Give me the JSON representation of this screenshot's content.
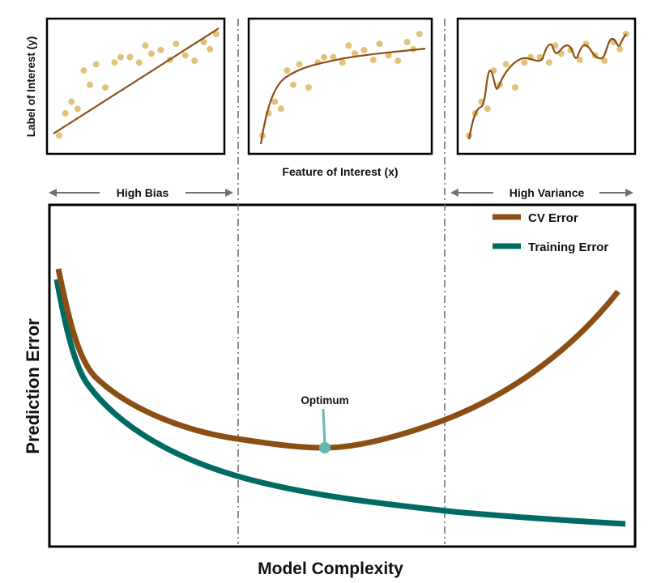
{
  "colors": {
    "cv_error": "#8B4E14",
    "training_error": "#006B63",
    "scatter_point": "#E2C27A",
    "optimum_marker": "#66B8AF",
    "frame": "#000000",
    "guide_line": "#666666",
    "arrow": "#707070"
  },
  "top_panels": {
    "ylabel": "Label of Interest (y)",
    "xlabel": "Feature of Interest (x)",
    "left_label": "High Bias",
    "right_label": "High Variance"
  },
  "main_chart": {
    "xlabel": "Model Complexity",
    "ylabel": "Prediction Error",
    "legend": [
      {
        "name": "CV Error",
        "color_key": "cv_error"
      },
      {
        "name": "Training Error",
        "color_key": "training_error"
      }
    ],
    "optimum_label": "Optimum"
  }
}
